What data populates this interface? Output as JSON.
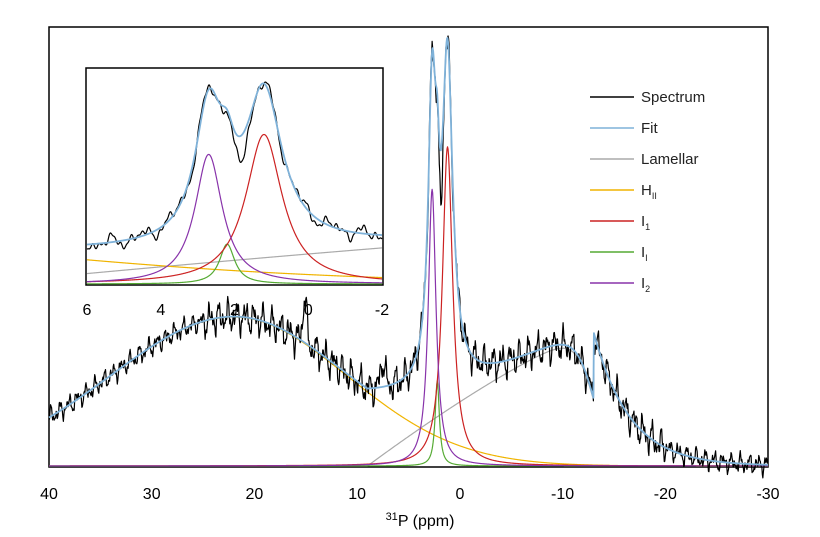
{
  "chart_data": {
    "type": "line",
    "title": "",
    "xlabel": "31P (ppm)",
    "xlabel_parts": {
      "superscript": "31",
      "main": "P (ppm)"
    },
    "ylabel": "",
    "x_reversed": true,
    "xlim": [
      40,
      -30
    ],
    "xticks": [
      40,
      30,
      20,
      10,
      0,
      -10,
      -20,
      -30
    ],
    "ylim": [
      0,
      1.0
    ],
    "grid": false,
    "legend_position": "right",
    "series": [
      {
        "name": "Spectrum",
        "color": "#000000"
      },
      {
        "name": "Fit",
        "color": "#7fb2d9"
      },
      {
        "name": "Lamellar",
        "color": "#aaaaaa"
      },
      {
        "name": "HII",
        "color": "#f0b400"
      },
      {
        "name": "I1",
        "color": "#cc2222"
      },
      {
        "name": "II",
        "color": "#55aa33"
      },
      {
        "name": "I2",
        "color": "#8833aa"
      }
    ],
    "components": {
      "lamellar": {
        "shape": "powder",
        "delta_perp": -13,
        "amp": 0.25,
        "width": 3.5
      },
      "hii": {
        "shape": "broad",
        "center": 22,
        "amp": 0.28,
        "width_left": 12,
        "width_right": 11
      },
      "i1": {
        "shape": "lorentzian",
        "center": 1.2,
        "amp": 0.6,
        "width": 0.6
      },
      "ii": {
        "shape": "lorentzian",
        "center": 2.2,
        "amp": 0.16,
        "width": 0.25
      },
      "i2": {
        "shape": "lorentzian",
        "center": 2.7,
        "amp": 0.52,
        "width": 0.45
      }
    },
    "inset": {
      "xlim": [
        6,
        -2
      ],
      "xticks": [
        6,
        4,
        2,
        0,
        -2
      ]
    }
  }
}
